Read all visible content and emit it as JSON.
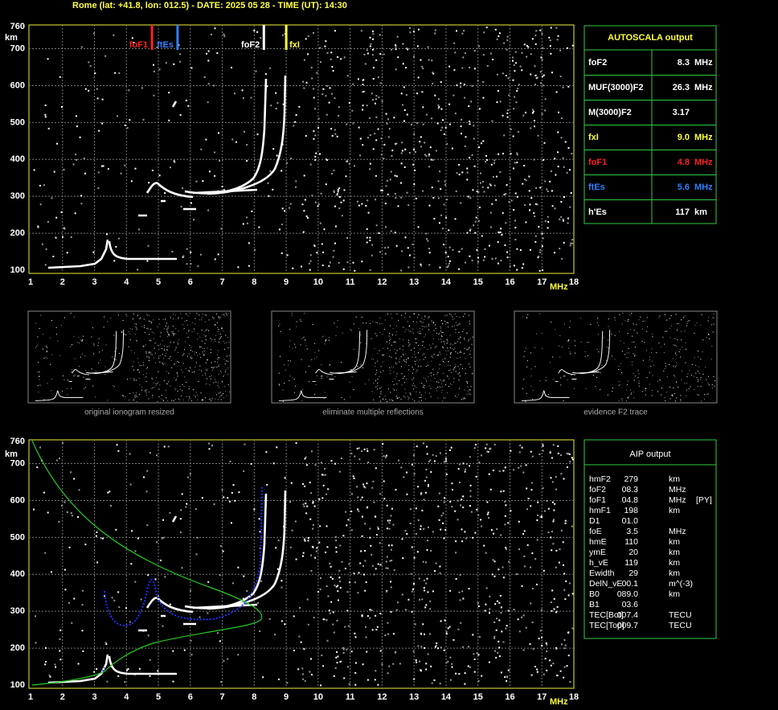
{
  "header": {
    "title": "Rome (lat: +41.8, lon: 012.5) - DATE: 2025 05 28 - TIME (UT): 14:30"
  },
  "top_plot": {
    "y_unit": "km",
    "x_unit": "MHz",
    "xticks": [
      1,
      2,
      3,
      4,
      5,
      6,
      7,
      8,
      9,
      10,
      11,
      12,
      13,
      14,
      15,
      16,
      17,
      18
    ],
    "yticks": [
      100,
      200,
      300,
      400,
      500,
      600,
      700,
      760
    ],
    "markers": [
      {
        "label": "foF1",
        "freq": 4.8,
        "color": "#ff2020",
        "label_side": "left"
      },
      {
        "label": "ftEs",
        "freq": 5.6,
        "color": "#3080ff",
        "label_side": "left"
      },
      {
        "label": "foF2",
        "freq": 8.3,
        "color": "#ffffff",
        "label_side": "left"
      },
      {
        "label": "fxI",
        "freq": 9.0,
        "color": "#ffff40",
        "label_side": "right"
      }
    ]
  },
  "autoscala": {
    "title": "AUTOSCALA output",
    "rows": [
      {
        "name": "foF2",
        "value": "8.3",
        "unit": "MHz",
        "color": "#ffffff"
      },
      {
        "name": "MUF(3000)F2",
        "value": "26.3",
        "unit": "MHz",
        "color": "#ffffff"
      },
      {
        "name": "M(3000)F2",
        "value": "3.17",
        "color": "#ffffff"
      },
      {
        "name": "fxI",
        "value": "9.0",
        "unit": "MHz",
        "color": "#ffff40"
      },
      {
        "name": "foF1",
        "value": "4.8",
        "unit": "MHz",
        "color": "#ff2020"
      },
      {
        "name": "ftEs",
        "value": "5.6",
        "unit": "MHz",
        "color": "#3080ff"
      },
      {
        "name": "h'Es",
        "value": "117",
        "unit": "km",
        "color": "#ffffff"
      }
    ]
  },
  "thumbnails": [
    {
      "caption": "original ionogram resized"
    },
    {
      "caption": "eliminate multiple reflections"
    },
    {
      "caption": "evidence F2 trace"
    }
  ],
  "bottom_plot": {
    "y_unit": "km",
    "x_unit": "MHz",
    "xticks": [
      1,
      2,
      3,
      4,
      5,
      6,
      7,
      8,
      9,
      10,
      11,
      12,
      13,
      14,
      15,
      16,
      17,
      18
    ],
    "yticks": [
      100,
      200,
      300,
      400,
      500,
      600,
      700,
      760
    ]
  },
  "aip": {
    "title": "AIP output",
    "rows": [
      [
        "hmF2",
        "279",
        "km"
      ],
      [
        "foF2",
        "08.3",
        "MHz"
      ],
      [
        "foF1",
        "04.8",
        "MHz",
        "[PY]"
      ],
      [
        "hmF1",
        "198",
        "km"
      ],
      [
        "D1",
        "01.0"
      ],
      [
        "foE",
        "3.5",
        "MHz"
      ],
      [
        "hmE",
        "110",
        "km"
      ],
      [
        "ymE",
        "20",
        "km"
      ],
      [
        "h_vE",
        "119",
        "km"
      ],
      [
        "Ewidth",
        "29",
        "km"
      ],
      [
        "DelN_vE",
        "00.1",
        "m^(-3)"
      ],
      [
        "B0",
        "089.0",
        "km"
      ],
      [
        "B1",
        "03.6"
      ],
      [
        "TEC[Bot]",
        "007.4",
        "TECU"
      ],
      [
        "TEC[Top]",
        "009.7",
        "TECU"
      ]
    ]
  }
}
